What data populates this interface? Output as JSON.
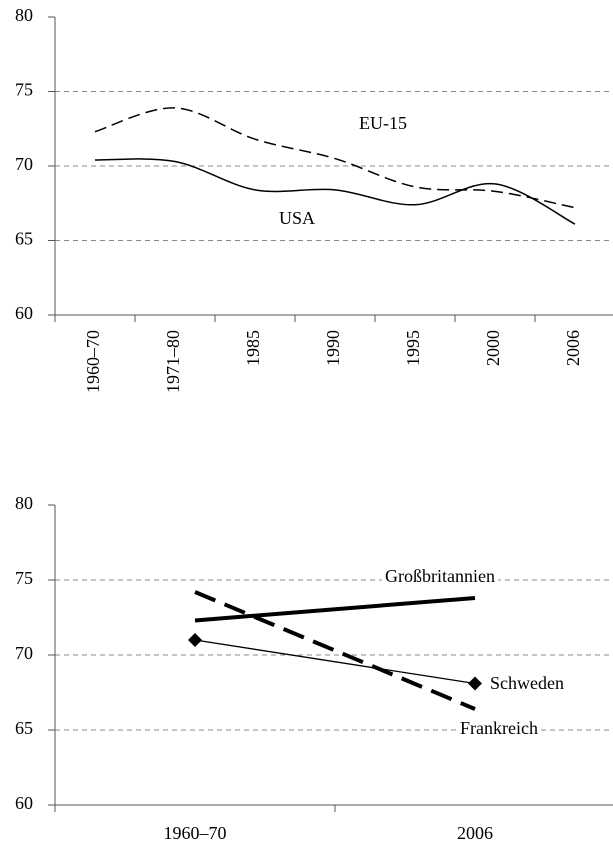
{
  "chart_data": [
    {
      "type": "line",
      "categories": [
        "1960–70",
        "1971–80",
        "1985",
        "1990",
        "1995",
        "2000",
        "2006"
      ],
      "series": [
        {
          "name": "EU-15",
          "color": "#000000",
          "dash": "dashed",
          "linewidth": 1.5,
          "values": [
            72.3,
            73.9,
            71.8,
            70.5,
            68.6,
            68.3,
            67.2
          ]
        },
        {
          "name": "USA",
          "color": "#000000",
          "dash": "solid",
          "linewidth": 1.5,
          "values": [
            70.4,
            70.3,
            68.4,
            68.4,
            67.4,
            68.8,
            66.1
          ]
        }
      ],
      "smooth": true,
      "rotate_xlabels": true,
      "ylim": [
        60,
        80
      ],
      "yticks": [
        60,
        65,
        70,
        75,
        80
      ],
      "grid": true
    },
    {
      "type": "line",
      "categories": [
        "1960–70",
        "2006"
      ],
      "series": [
        {
          "name": "Großbritannien",
          "color": "#000000",
          "dash": "solid",
          "linewidth": 4,
          "values": [
            72.3,
            73.8
          ]
        },
        {
          "name": "Frankreich",
          "color": "#000000",
          "dash": "dashed",
          "linewidth": 4,
          "values": [
            74.2,
            66.4
          ]
        },
        {
          "name": "Schweden",
          "color": "#000000",
          "dash": "solid",
          "linewidth": 1.3,
          "marker": "diamond",
          "values": [
            71.0,
            68.1
          ]
        }
      ],
      "smooth": false,
      "rotate_xlabels": false,
      "ylim": [
        60,
        80
      ],
      "yticks": [
        60,
        65,
        70,
        75,
        80
      ],
      "grid": true
    }
  ]
}
